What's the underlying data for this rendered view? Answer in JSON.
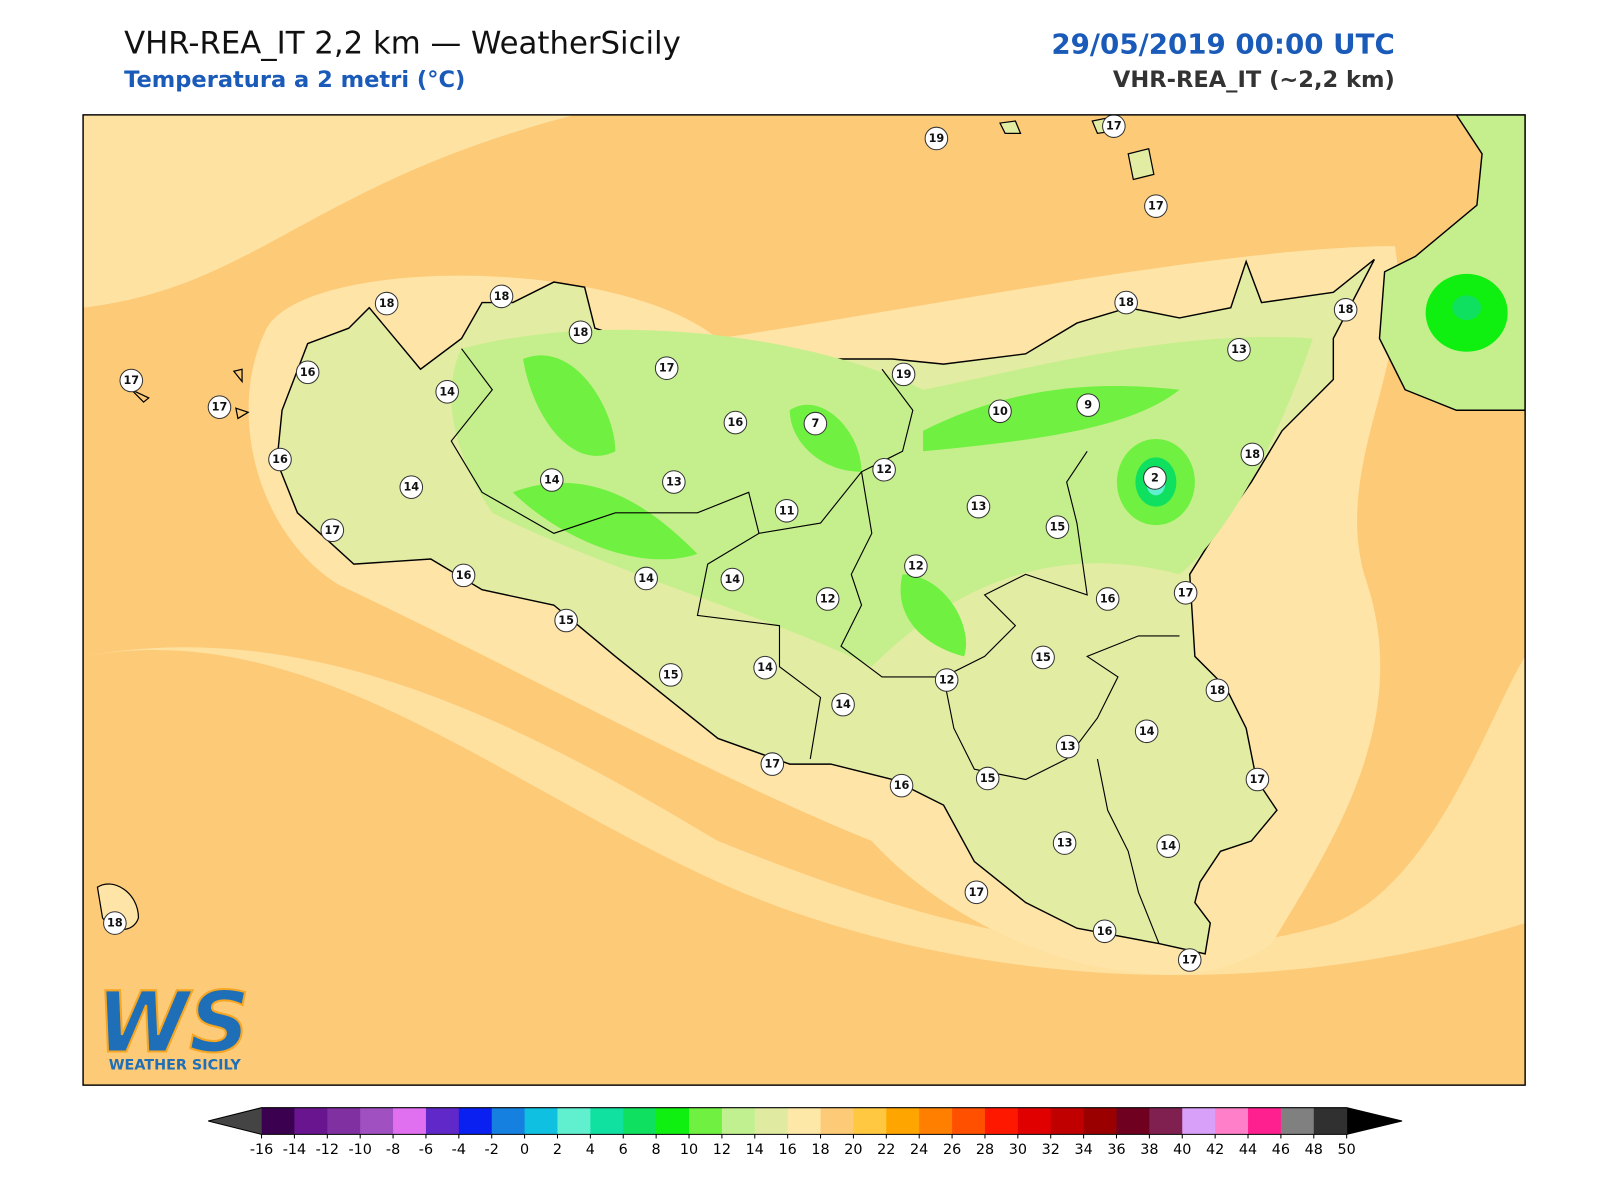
{
  "header": {
    "title": "VHR-REA_IT 2,2 km — WeatherSicily",
    "subtitle": "Temperatura a 2 metri (°C)",
    "datetime": "29/05/2019 00:00 UTC",
    "model": "VHR-REA_IT (~2,2 km)"
  },
  "stations": [
    19,
    17,
    17,
    18,
    18,
    18,
    17,
    16,
    14,
    17,
    19,
    18,
    18,
    13,
    17,
    16,
    7,
    10,
    9,
    16,
    14,
    14,
    13,
    12,
    18,
    2,
    11,
    13,
    15,
    17,
    16,
    14,
    14,
    12,
    12,
    16,
    17,
    15,
    15,
    15,
    14,
    12,
    14,
    18,
    13,
    14,
    17,
    16,
    15,
    17,
    13,
    14,
    17,
    18,
    16,
    17
  ],
  "colorbar": {
    "ticks": [
      -16,
      -14,
      -12,
      -10,
      -8,
      -6,
      -4,
      -2,
      0,
      2,
      4,
      6,
      8,
      10,
      12,
      14,
      16,
      18,
      20,
      22,
      24,
      26,
      28,
      30,
      32,
      34,
      36,
      38,
      40,
      42,
      44,
      46,
      48,
      50
    ],
    "colors": [
      "#3b0050",
      "#6a1590",
      "#8030a0",
      "#a050c0",
      "#e070f0",
      "#6028c8",
      "#0a20f0",
      "#1580e0",
      "#10c0e0",
      "#60f0d0",
      "#10e0a0",
      "#10e060",
      "#10f010",
      "#70f040",
      "#c0f090",
      "#e0eaa0",
      "#fee8a8",
      "#fdcb78",
      "#ffc840",
      "#ffa500",
      "#ff8000",
      "#ff5000",
      "#ff1800",
      "#e00000",
      "#c00000",
      "#9b0000",
      "#700020",
      "#802050",
      "#d8a0f8",
      "#ff80c8",
      "#ff2090",
      "#808080",
      "#303030"
    ],
    "under_color": "#444444",
    "over_color": "#000000"
  },
  "logo": {
    "mark": "WS",
    "text": "WEATHER SICILY"
  }
}
